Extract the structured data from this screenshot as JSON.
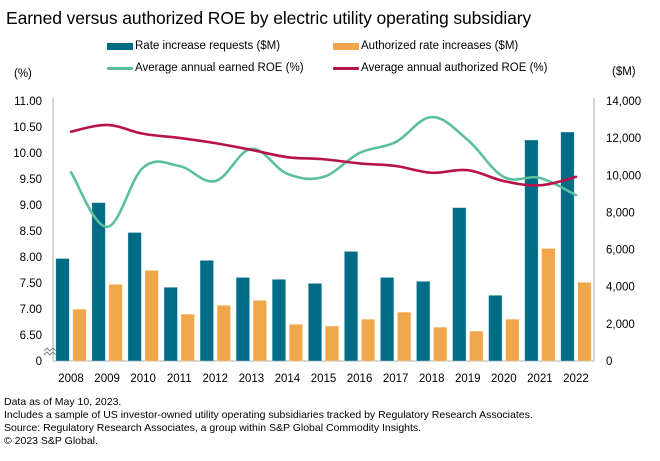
{
  "title": "Earned versus authorized ROE by electric utility operating subsidiary",
  "legend": [
    {
      "label": "Rate increase requests ($M)",
      "kind": "bar",
      "color": "#006C86"
    },
    {
      "label": "Authorized rate  increases ($M)",
      "kind": "bar",
      "color": "#F0A64B"
    },
    {
      "label": "Average annual  earned ROE (%)",
      "kind": "line",
      "color": "#5BBF9F"
    },
    {
      "label": "Average annual  authorized ROE (%)",
      "kind": "line",
      "color": "#B8124C"
    }
  ],
  "left_unit": "(%)",
  "right_unit": "($M)",
  "footer": [
    "Data as of May 10, 2023.",
    "Includes a sample of US investor-owned utility operating subsidiaries tracked by Regulatory Research Associates.",
    "Source: Regulatory Research Associates, a group within S&P Global Commodity Insights.",
    "© 2023 S&P Global."
  ],
  "chart_data": {
    "type": "bar",
    "title": "Earned versus authorized ROE by electric utility operating subsidiary",
    "categories": [
      "2008",
      "2009",
      "2010",
      "2011",
      "2012",
      "2013",
      "2014",
      "2015",
      "2016",
      "2017",
      "2018",
      "2019",
      "2020",
      "2021",
      "2022"
    ],
    "series": [
      {
        "name": "Rate increase requests ($M)",
        "type": "bar",
        "axis": "right",
        "color": "#006C86",
        "values": [
          5520,
          8530,
          6920,
          3970,
          5420,
          4500,
          4400,
          4180,
          5900,
          4500,
          4290,
          8260,
          3540,
          11900,
          12330
        ]
      },
      {
        "name": "Authorized rate  increases ($M)",
        "type": "bar",
        "axis": "right",
        "color": "#F0A64B",
        "values": [
          2790,
          4130,
          4880,
          2520,
          3000,
          3270,
          1980,
          1880,
          2250,
          2630,
          1820,
          1610,
          2250,
          6060,
          4240
        ]
      },
      {
        "name": "Average annual  earned ROE (%)",
        "type": "line",
        "axis": "left",
        "color": "#5BBF9F",
        "values": [
          9.63,
          8.58,
          9.72,
          9.75,
          9.46,
          10.08,
          9.6,
          9.54,
          10.0,
          10.21,
          10.69,
          10.25,
          9.54,
          9.52,
          9.19
        ]
      },
      {
        "name": "Average annual  authorized ROE (%)",
        "type": "line",
        "axis": "left",
        "color": "#B8124C",
        "values": [
          10.41,
          10.54,
          10.37,
          10.29,
          10.19,
          10.06,
          9.92,
          9.88,
          9.8,
          9.75,
          9.62,
          9.67,
          9.46,
          9.38,
          9.54
        ]
      }
    ],
    "left_axis": {
      "label": "(%)",
      "ticks": [
        "11.00",
        "10.50",
        "10.00",
        "9.50",
        "9.00",
        "8.50",
        "8.00",
        "7.50",
        "7.00",
        "6.50",
        "0"
      ],
      "range": [
        6.5,
        11.0
      ],
      "broken": true
    },
    "right_axis": {
      "label": "($M)",
      "ticks": [
        "14,000",
        "12,000",
        "10,000",
        "8,000",
        "6,000",
        "4,000",
        "2,000",
        "0"
      ],
      "range": [
        0,
        14000
      ]
    },
    "xlabel": "",
    "grid": false,
    "legend_position": "top"
  }
}
